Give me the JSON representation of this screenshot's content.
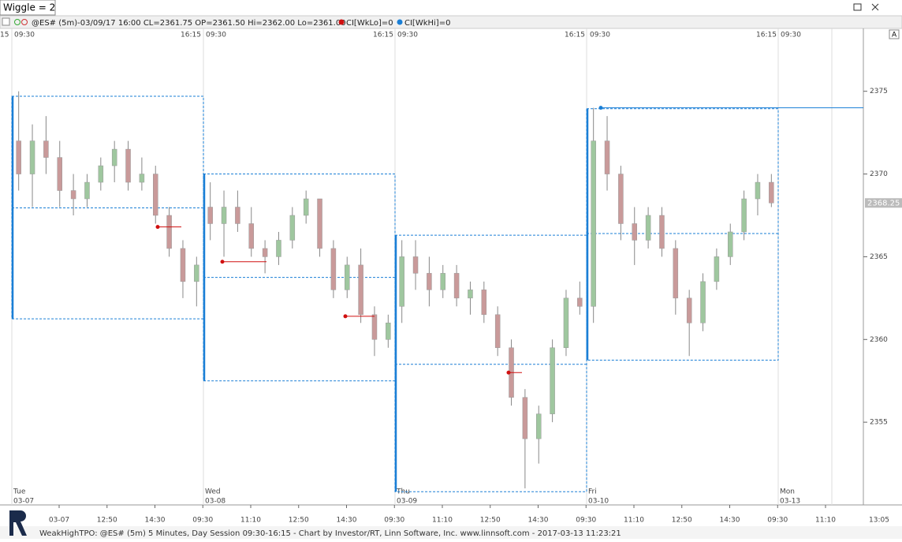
{
  "window": {
    "title": "Wiggle = 2"
  },
  "info_bar": {
    "quote": "@ES# (5m)-03/09/17 16:00 CL=2361.75 OP=2361.50 Hi=2362.00 Lo=2361.00",
    "indicator_low": "CI[WkLo]=0",
    "indicator_high": "CI[WkHi]=0"
  },
  "chart_data": {
    "type": "candlestick",
    "ylim": [
      2350,
      2378.8
    ],
    "yticks": [
      2355,
      2360,
      2365,
      2370,
      2375
    ],
    "top_time_labels": [
      "15",
      "09:30",
      "16:15",
      "09:30",
      "16:15",
      "09:30",
      "16:15",
      "09:30",
      "16:15",
      "09:30"
    ],
    "bottom_time_labels": [
      "03-07",
      "12:50",
      "14:30",
      "09:30",
      "11:10",
      "12:50",
      "14:30",
      "09:30",
      "11:10",
      "12:50",
      "14:30",
      "09:30",
      "11:10",
      "12:50",
      "14:30",
      "09:30",
      "11:10"
    ],
    "axis_time": "13:05",
    "day_labels": [
      {
        "day": "Tue",
        "date": "03-07"
      },
      {
        "day": "Wed",
        "date": "03-08"
      },
      {
        "day": "Thu",
        "date": "03-09"
      },
      {
        "day": "Fri",
        "date": "03-10"
      },
      {
        "day": "Mon",
        "date": "03-13"
      }
    ],
    "candles": [
      [
        2372,
        2375,
        2369,
        2370
      ],
      [
        2370,
        2373,
        2368,
        2372
      ],
      [
        2372,
        2373.5,
        2370,
        2371
      ],
      [
        2371,
        2372,
        2368,
        2369
      ],
      [
        2369,
        2370,
        2367.5,
        2368.5
      ],
      [
        2368.5,
        2370,
        2368,
        2369.5
      ],
      [
        2369.5,
        2371,
        2369,
        2370.5
      ],
      [
        2370.5,
        2372,
        2369.5,
        2371.5
      ],
      [
        2371.5,
        2372,
        2369,
        2369.5
      ],
      [
        2369.5,
        2371,
        2369,
        2370
      ],
      [
        2370,
        2370.5,
        2367,
        2367.5
      ],
      [
        2367.5,
        2368,
        2365,
        2365.5
      ],
      [
        2365.5,
        2366,
        2362.5,
        2363.5
      ],
      [
        2363.5,
        2365,
        2362,
        2364.5
      ],
      [
        2368,
        2369.5,
        2366,
        2367
      ],
      [
        2367,
        2369,
        2365,
        2368
      ],
      [
        2368,
        2369,
        2366.5,
        2367
      ],
      [
        2367,
        2368,
        2365,
        2365.5
      ],
      [
        2365.5,
        2366,
        2364,
        2365
      ],
      [
        2365,
        2366.5,
        2364.5,
        2366
      ],
      [
        2366,
        2368,
        2365.5,
        2367.5
      ],
      [
        2367.5,
        2369,
        2367,
        2368.5
      ],
      [
        2368.5,
        2368.5,
        2365,
        2365.5
      ],
      [
        2365.5,
        2366,
        2362.5,
        2363
      ],
      [
        2363,
        2365,
        2362.5,
        2364.5
      ],
      [
        2364.5,
        2365.5,
        2361,
        2361.5
      ],
      [
        2361.5,
        2362,
        2359,
        2360
      ],
      [
        2360,
        2361.5,
        2359.5,
        2361
      ],
      [
        2362,
        2366,
        2361,
        2365
      ],
      [
        2365,
        2366,
        2363,
        2364
      ],
      [
        2364,
        2365,
        2362,
        2363
      ],
      [
        2363,
        2364.5,
        2362.5,
        2364
      ],
      [
        2364,
        2364.5,
        2362,
        2362.5
      ],
      [
        2362.5,
        2363.5,
        2361.5,
        2363
      ],
      [
        2363,
        2363.5,
        2361,
        2361.5
      ],
      [
        2361.5,
        2362,
        2359,
        2359.5
      ],
      [
        2359.5,
        2360,
        2356,
        2356.5
      ],
      [
        2356.5,
        2357,
        2351,
        2354
      ],
      [
        2354,
        2356,
        2352.5,
        2355.5
      ],
      [
        2355.5,
        2360,
        2355,
        2359.5
      ],
      [
        2359.5,
        2363,
        2359,
        2362.5
      ],
      [
        2362.5,
        2363.5,
        2361.5,
        2362
      ],
      [
        2362,
        2374,
        2361,
        2372
      ],
      [
        2372,
        2373.5,
        2369,
        2370
      ],
      [
        2370,
        2370.5,
        2366,
        2367
      ],
      [
        2367,
        2368,
        2364.5,
        2366
      ],
      [
        2366,
        2368,
        2365.5,
        2367.5
      ],
      [
        2367.5,
        2368,
        2365,
        2365.5
      ],
      [
        2365.5,
        2366,
        2361.5,
        2362.5
      ],
      [
        2362.5,
        2363,
        2359,
        2361
      ],
      [
        2361,
        2364,
        2360.5,
        2363.5
      ],
      [
        2363.5,
        2365.5,
        2363,
        2365
      ],
      [
        2365,
        2367,
        2364.5,
        2366.5
      ],
      [
        2366.5,
        2369,
        2366,
        2368.5
      ],
      [
        2368.5,
        2370,
        2367.5,
        2369.5
      ],
      [
        2369.5,
        2370,
        2368,
        2368.25
      ]
    ],
    "sessions": [
      {
        "hi": 2374.7,
        "lo": 2361.25,
        "poc": 2367.95
      },
      {
        "hi": 2370,
        "lo": 2357.5,
        "poc": 2363.75
      },
      {
        "hi": 2366.3,
        "lo": 2350.8,
        "poc": 2358.5
      },
      {
        "hi": 2373.95,
        "lo": 2358.75,
        "poc": 2366.4
      }
    ],
    "weak_lows": [
      2366.8,
      2364.7,
      2361.4,
      2358
    ],
    "weak_high": 2374,
    "last_price": 2368.25,
    "colors": {
      "up": "#9fc79f",
      "down": "#c99a9a",
      "profile": "#1a7fd6",
      "weak_low": "#d01010",
      "weak_high": "#1a7fd6"
    }
  },
  "footer": "WeakHighTPO: @ES# (5m) 5 Minutes, Day Session 09:30-16:15 - Chart by Investor/RT, Linn Software, Inc. www.linnsoft.com - 2017-03-13 11:23:21"
}
